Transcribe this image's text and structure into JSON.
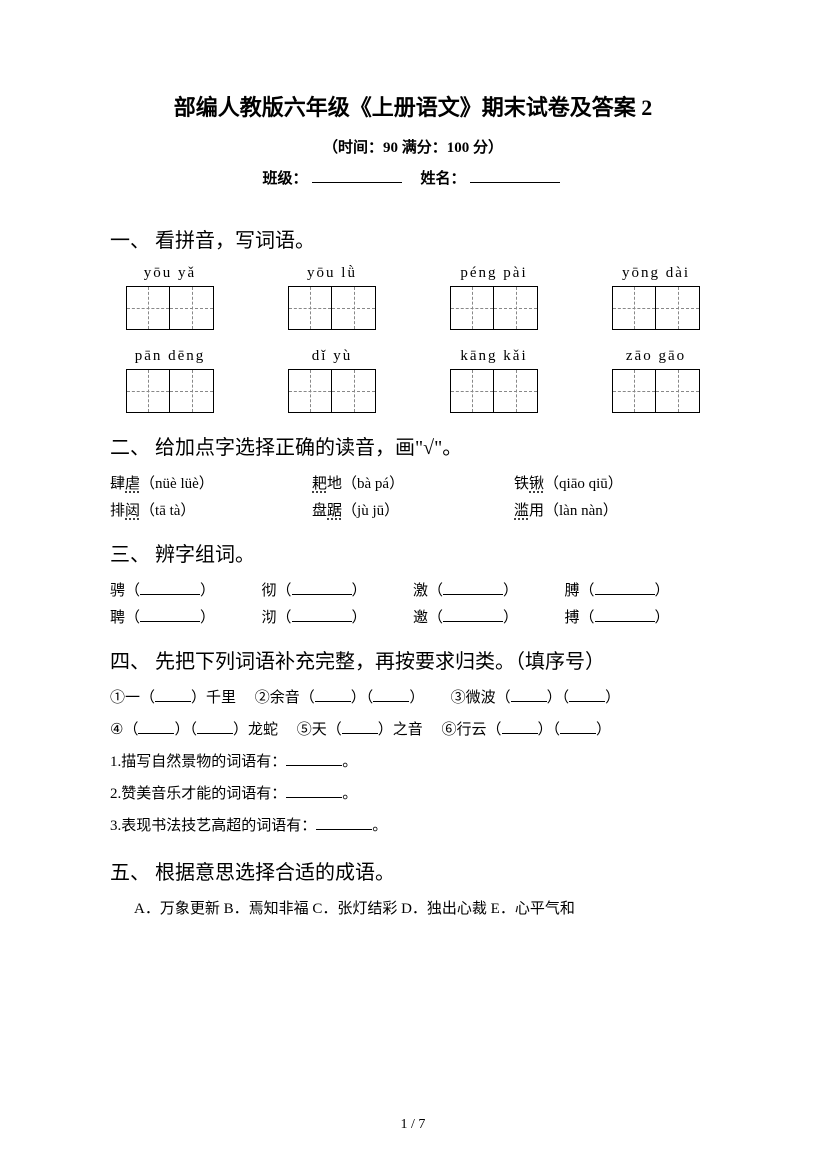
{
  "title": "部编人教版六年级《上册语文》期末试卷及答案 2",
  "subtitle": "（时间：90   满分：100 分）",
  "fill_labels": {
    "class": "班级：",
    "name": "姓名："
  },
  "sections": {
    "q1": {
      "head": "一、 看拼音，写词语。",
      "row1": [
        "yōu  yǎ",
        "yōu   lǜ",
        "péng  pài",
        "yōng  dài"
      ],
      "row2": [
        "pān  dēng",
        "dǐ  yù",
        "kāng  kǎi",
        "zāo  gāo"
      ]
    },
    "q2": {
      "head": "二、 给加点字选择正确的读音，画\"√\"。",
      "rows": [
        [
          {
            "pre": "肆",
            "dot": "虐",
            "post": "（nüè  lüè）"
          },
          {
            "pre": "",
            "dot": "耙",
            "post": "地（bà  pá）"
          },
          {
            "pre": "铁",
            "dot": "锹",
            "post": "（qiāo  qiū）"
          }
        ],
        [
          {
            "pre": "排",
            "dot": "闼",
            "post": "（tā  tà）"
          },
          {
            "pre": "盘",
            "dot": "踞",
            "post": "（jù  jū）"
          },
          {
            "pre": "",
            "dot": "滥",
            "post": "用（làn  nàn）"
          }
        ]
      ]
    },
    "q3": {
      "head": "三、 辨字组词。",
      "rows": [
        [
          "骋",
          "彻",
          "激",
          "膊"
        ],
        [
          "聘",
          "沏",
          "邀",
          "搏"
        ]
      ]
    },
    "q4": {
      "head": "四、 先把下列词语补充完整，再按要求归类。（填序号）",
      "items": {
        "l1a": "①一（",
        "l1b": "）千里",
        "l1c": "②余音（",
        "l1d": "）（",
        "l1e": "）",
        "l1f": "③微波（",
        "l1g": "）（",
        "l1h": "）",
        "l2a": "④（",
        "l2b": "）（",
        "l2c": "）龙蛇",
        "l2d": "⑤天（",
        "l2e": "）之音",
        "l2f": "⑥行云（",
        "l2g": "）（",
        "l2h": "）"
      },
      "subs": [
        "1.描写自然景物的词语有：",
        "2.赞美音乐才能的词语有：",
        "3.表现书法技艺高超的词语有："
      ]
    },
    "q5": {
      "head": "五、 根据意思选择合适的成语。",
      "options": "A．万象更新  B．焉知非福  C．张灯结彩  D．独出心裁  E．心平气和"
    }
  },
  "pagenum": "1 / 7"
}
